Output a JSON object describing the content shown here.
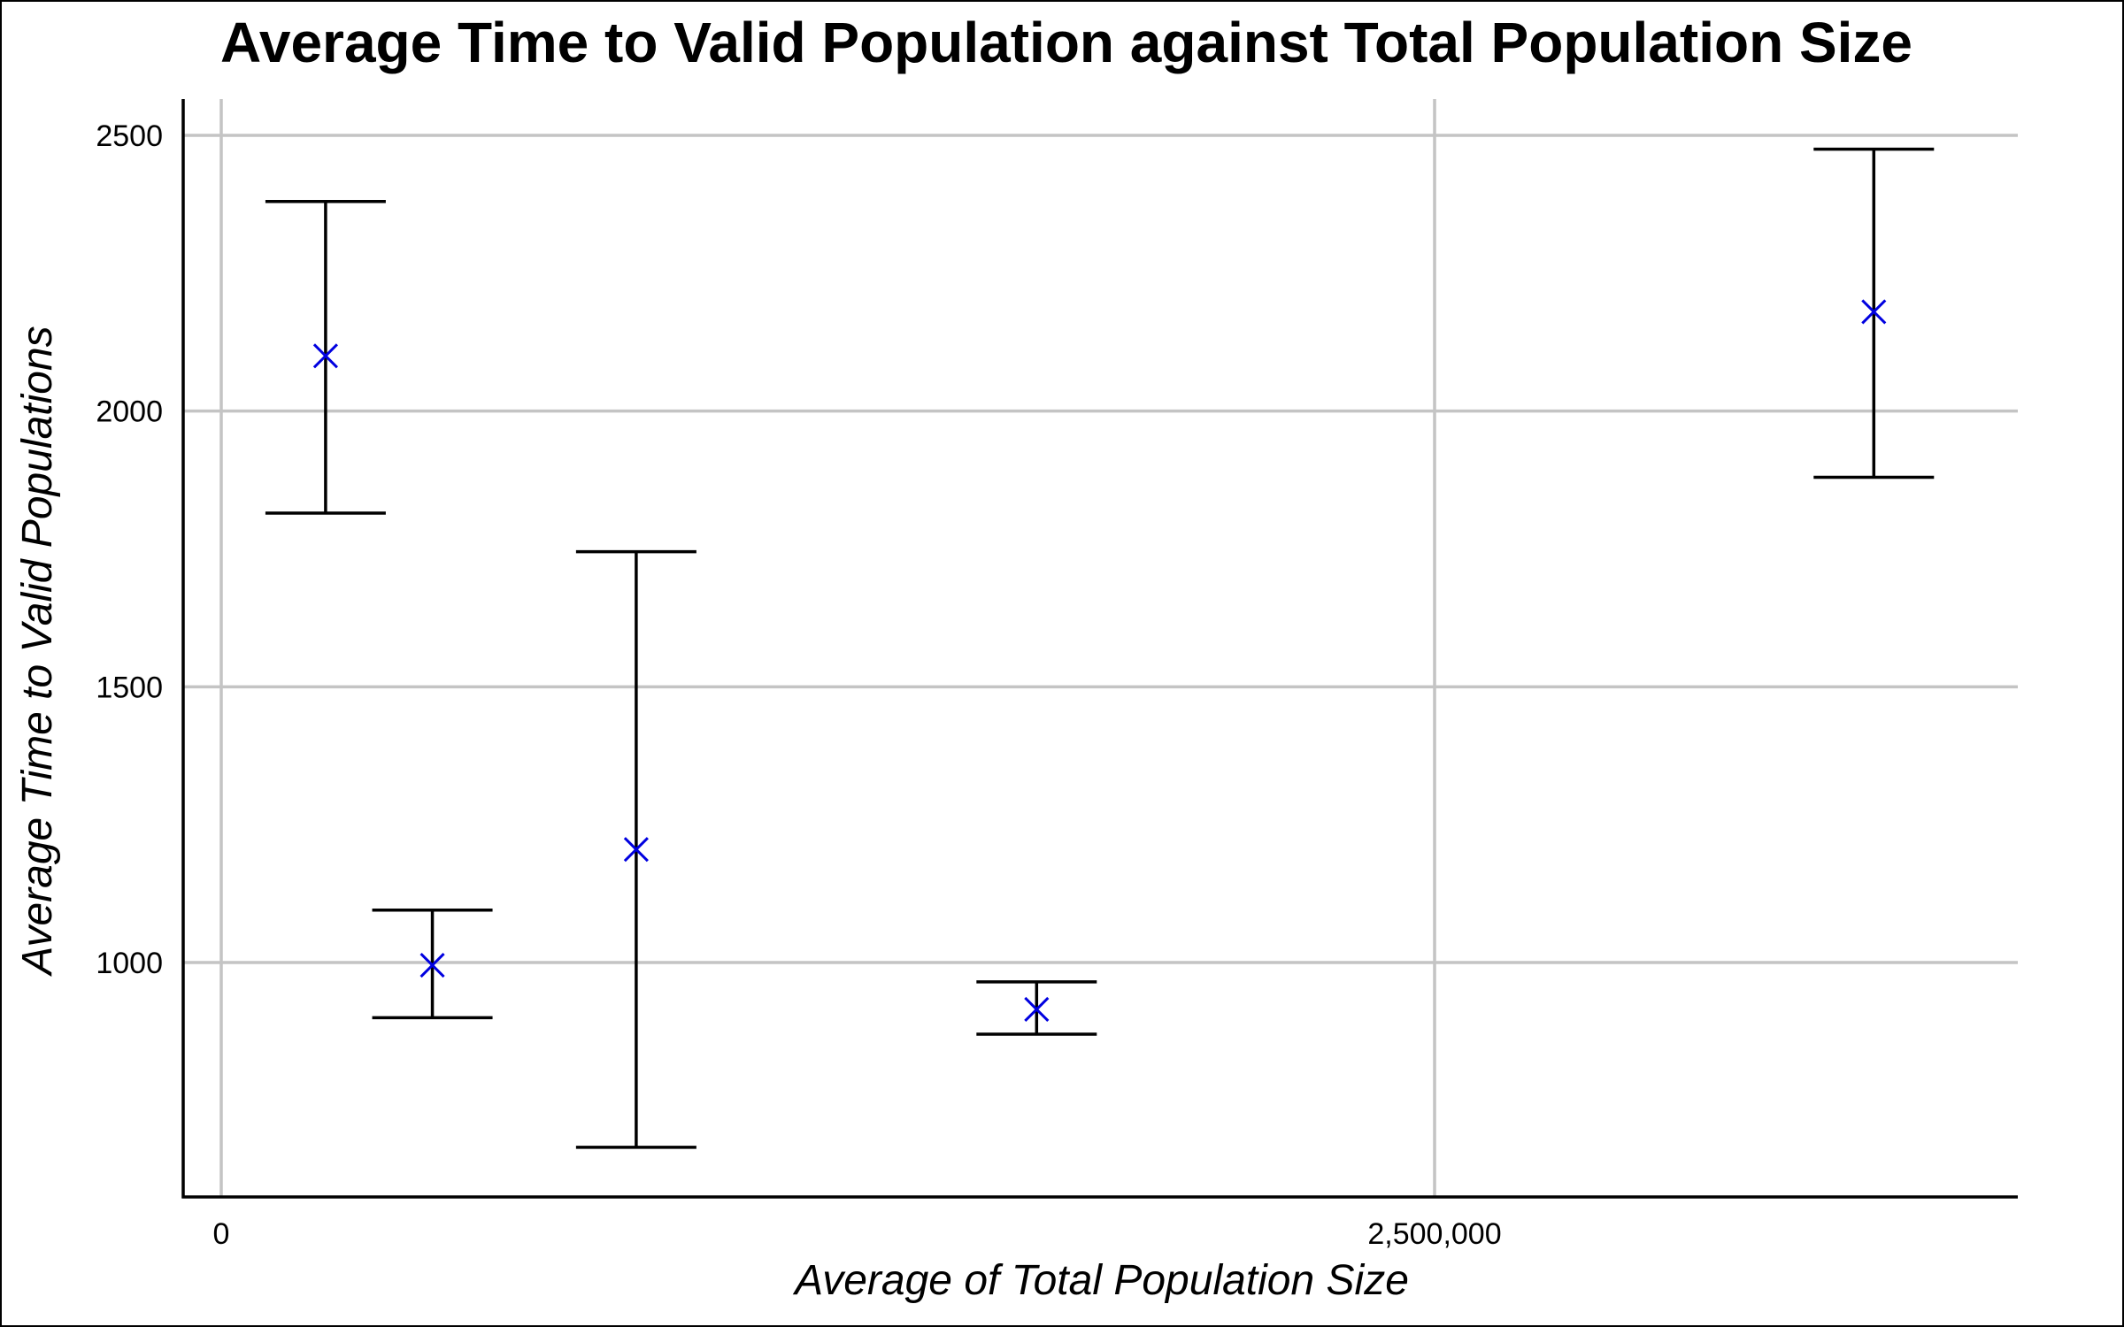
{
  "chart_data": {
    "type": "scatter",
    "title": "Average Time to Valid Population against Total Population Size",
    "xlabel": "Average of Total Population Size",
    "ylabel": "Average Time to Valid Populations",
    "xlim": [
      -80000,
      3700000
    ],
    "ylim": [
      580,
      2565
    ],
    "x_ticks": [
      {
        "value": 0,
        "label": "0"
      },
      {
        "value": 2500000,
        "label": "2,500,000"
      }
    ],
    "y_ticks": [
      {
        "value": 1000,
        "label": "1000"
      },
      {
        "value": 1500,
        "label": "1500"
      },
      {
        "value": 2000,
        "label": "2000"
      },
      {
        "value": 2500,
        "label": "2500"
      }
    ],
    "grid": true,
    "marker": "x",
    "marker_color": "#0000e0",
    "errorbar_color": "#000000",
    "grid_color": "#c4c4c4",
    "points": [
      {
        "x": 215000,
        "y": 2100,
        "err_low": 1815,
        "err_high": 2380
      },
      {
        "x": 435000,
        "y": 995,
        "err_low": 900,
        "err_high": 1095
      },
      {
        "x": 855000,
        "y": 1205,
        "err_low": 665,
        "err_high": 1745
      },
      {
        "x": 1680000,
        "y": 915,
        "err_low": 870,
        "err_high": 965
      },
      {
        "x": 3405000,
        "y": 2180,
        "err_low": 1880,
        "err_high": 2475
      }
    ]
  }
}
